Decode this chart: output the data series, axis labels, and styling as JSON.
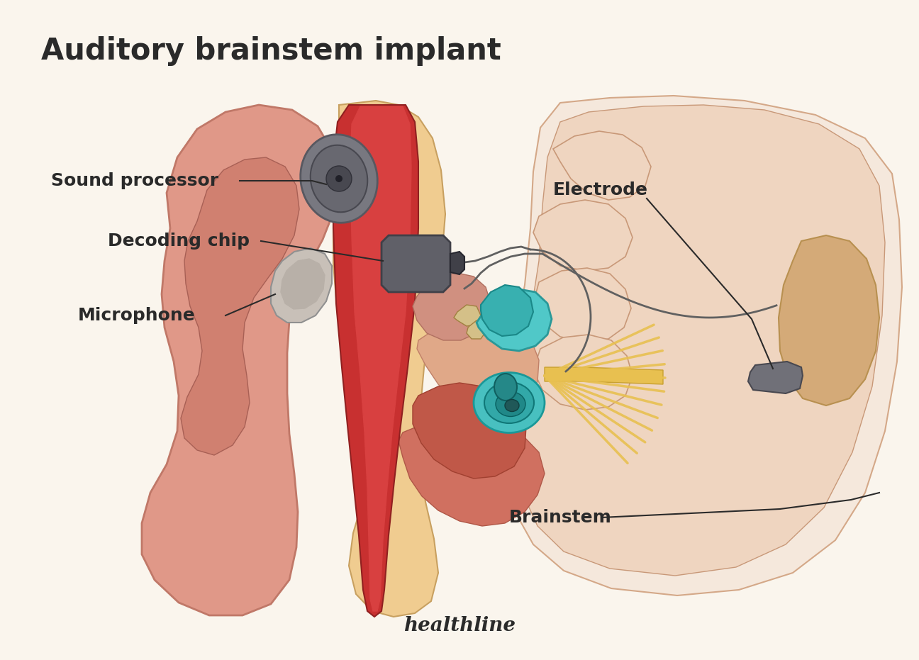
{
  "title": "Auditory brainstem implant",
  "title_fontsize": 30,
  "title_color": "#2a2a2a",
  "background_color": "#faf5ed",
  "brand": "healthline",
  "brand_color": "#2a2a2a",
  "brand_fontsize": 20,
  "labels": {
    "sound_processor": "Sound processor",
    "decoding_chip": "Decoding chip",
    "microphone": "Microphone",
    "electrode": "Electrode",
    "brainstem": "Brainstem"
  },
  "label_fontsize": 18,
  "label_color": "#2a2a2a",
  "line_color": "#2a2a2a",
  "bg": "#faf5ed",
  "skull_bg": "#f5e8dc",
  "skull_inner": "#efd5c0",
  "skull_bone": "#e8c898",
  "skin_pink": "#e09888",
  "skin_mid": "#d08070",
  "skin_dark": "#c07060",
  "skin_inner": "#e8b0a0",
  "canal_yellow": "#f0cc90",
  "red_wall": "#c83030",
  "red_hi": "#d84040",
  "tympanic": "#e8a880",
  "inner_cavity": "#e8b898",
  "ossicle_color": "#d4a060",
  "cochlea_teal": "#48c0c0",
  "cochlea_mid": "#32a8a8",
  "cochlea_in": "#208888",
  "cochlea_dark": "#106868",
  "vestibule_teal": "#50c8c8",
  "nerve_gold": "#e8c050",
  "nerve_dark": "#c8a030",
  "chip_gray": "#606068",
  "chip_dark": "#404048",
  "sp_gray": "#787880",
  "sp_mid": "#585860",
  "mic_silver": "#c8c0b8",
  "wire_gray": "#606060",
  "electrode_gray": "#707078",
  "brainstem_tan": "#d4aa78"
}
